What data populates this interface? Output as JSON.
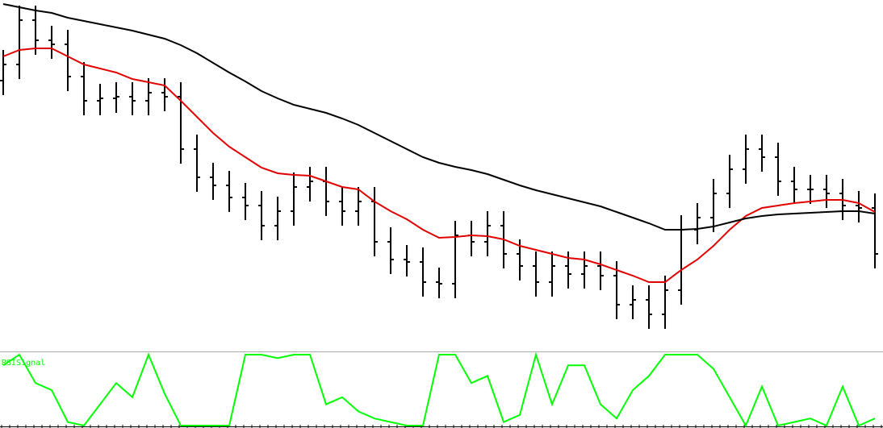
{
  "chart_data": [
    {
      "type": "ohlc",
      "ylim": [
        0,
        435
      ],
      "open": [
        335,
        355,
        410,
        385,
        380,
        340,
        310,
        313,
        315,
        310,
        320,
        315,
        250,
        215,
        205,
        190,
        180,
        155,
        173,
        203,
        210,
        185,
        173,
        185,
        135,
        113,
        110,
        85,
        83,
        143,
        135,
        155,
        120,
        105,
        85,
        105,
        95,
        105,
        93,
        57,
        63,
        45,
        75,
        150,
        165,
        195,
        225,
        250,
        240,
        210,
        200,
        200,
        195,
        180,
        177
      ],
      "high": [
        373,
        428,
        428,
        403,
        398,
        358,
        331,
        333,
        333,
        338,
        338,
        333,
        268,
        233,
        223,
        208,
        198,
        191,
        221,
        228,
        228,
        203,
        203,
        203,
        153,
        131,
        128,
        103,
        161,
        161,
        173,
        173,
        138,
        123,
        123,
        123,
        123,
        123,
        111,
        81,
        81,
        93,
        168,
        183,
        213,
        243,
        268,
        268,
        258,
        228,
        218,
        218,
        213,
        198,
        195
      ],
      "low": [
        317,
        337,
        367,
        362,
        322,
        292,
        292,
        295,
        292,
        292,
        297,
        232,
        197,
        187,
        172,
        162,
        137,
        137,
        155,
        185,
        167,
        155,
        155,
        117,
        95,
        92,
        67,
        65,
        65,
        117,
        117,
        102,
        87,
        67,
        67,
        77,
        77,
        75,
        39,
        39,
        27,
        27,
        57,
        132,
        147,
        177,
        207,
        222,
        192,
        182,
        182,
        177,
        162,
        159,
        102
      ],
      "close": [
        355,
        410,
        385,
        380,
        340,
        310,
        313,
        315,
        310,
        320,
        315,
        250,
        215,
        205,
        190,
        180,
        155,
        173,
        203,
        210,
        185,
        173,
        185,
        135,
        113,
        110,
        85,
        83,
        143,
        135,
        155,
        120,
        105,
        85,
        105,
        95,
        105,
        93,
        57,
        63,
        45,
        75,
        150,
        165,
        195,
        225,
        250,
        240,
        210,
        200,
        200,
        195,
        180,
        177,
        120
      ],
      "color": "#000000",
      "series": [
        {
          "color": "#e00000",
          "values": [
            365,
            373,
            375,
            375,
            365,
            355,
            350,
            345,
            337,
            333,
            329,
            310,
            290,
            270,
            253,
            240,
            227,
            220,
            218,
            217,
            210,
            203,
            200,
            185,
            173,
            163,
            150,
            140,
            141,
            143,
            142,
            138,
            130,
            125,
            120,
            115,
            113,
            107,
            100,
            93,
            85,
            85,
            100,
            113,
            130,
            150,
            167,
            177,
            180,
            183,
            185,
            187,
            187,
            183,
            172
          ]
        },
        {
          "color": "#000000",
          "values": [
            430,
            426,
            422,
            419,
            413,
            409,
            405,
            401,
            397,
            392,
            387,
            379,
            369,
            357,
            345,
            334,
            322,
            313,
            305,
            300,
            295,
            288,
            280,
            270,
            260,
            250,
            240,
            233,
            228,
            224,
            219,
            212,
            205,
            199,
            194,
            189,
            184,
            179,
            172,
            165,
            158,
            150,
            150,
            151,
            154,
            159,
            164,
            167,
            169,
            170,
            171,
            172,
            173,
            173,
            170
          ]
        }
      ]
    },
    {
      "type": "line",
      "ylim": [
        0,
        100
      ],
      "series": [
        {
          "name": "RSISignal",
          "color": "#00ff00",
          "values": [
            85,
            100,
            60,
            50,
            5,
            0,
            30,
            60,
            40,
            100,
            45,
            0,
            0,
            0,
            0,
            100,
            100,
            95,
            100,
            100,
            30,
            40,
            20,
            10,
            5,
            0,
            0,
            100,
            100,
            60,
            70,
            5,
            15,
            100,
            30,
            85,
            85,
            30,
            10,
            50,
            70,
            100,
            100,
            100,
            80,
            40,
            0,
            55,
            0,
            5,
            10,
            0,
            55,
            0,
            10
          ]
        }
      ]
    }
  ]
}
